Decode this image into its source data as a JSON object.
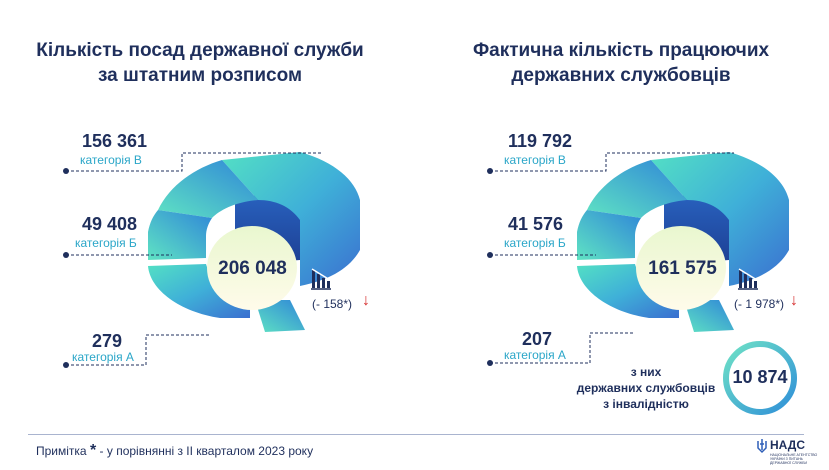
{
  "colors": {
    "navy": "#1f2f5c",
    "teal": "#2aa6c8",
    "down_arrow": "#d62f2f",
    "ring": "#3fb6d6"
  },
  "left": {
    "title_line1": "Кількість посад державної служби",
    "title_line2": "за штатним розписом",
    "total": "206 048",
    "change": "(- 158*)",
    "categories": [
      {
        "value": "156 361",
        "label": "категорія В"
      },
      {
        "value": "49 408",
        "label": "категорія Б"
      },
      {
        "value": "279",
        "label": "категорія А"
      }
    ]
  },
  "right": {
    "title_line1": "Фактична кількість працюючих",
    "title_line2": "державних службовців",
    "total": "161 575",
    "change": "(- 1 978*)",
    "categories": [
      {
        "value": "119 792",
        "label": "категорія В"
      },
      {
        "value": "41 576",
        "label": "категорія Б"
      },
      {
        "value": "207",
        "label": "категорія А"
      }
    ],
    "disabled_text_line1": "з них",
    "disabled_text_line2": "державних службовців",
    "disabled_text_line3": "з інвалідністю",
    "disabled_value": "10 874"
  },
  "footer": {
    "note_prefix": "Примітка",
    "note_star": "*",
    "note_text": " - у порівнянні з II кварталом 2023 року",
    "logo_name": "НАДС",
    "logo_subtitle": "НАЦІОНАЛЬНЕ АГЕНТСТВО УКРАЇНИ З ПИТАНЬ ДЕРЖАВНОЇ СЛУЖБИ"
  },
  "icons": {
    "category_marker": "dot-icon",
    "trend": "bar-chart-down-icon",
    "change_arrow": "arrow-down-icon",
    "logo": "trident-icon"
  },
  "chart_data": [
    {
      "type": "pie",
      "title": "Кількість посад державної служби за штатним розписом",
      "total": 206048,
      "total_change": -158,
      "categories": [
        "категорія В",
        "категорія Б",
        "категорія А"
      ],
      "values": [
        156361,
        49408,
        279
      ]
    },
    {
      "type": "pie",
      "title": "Фактична кількість працюючих державних службовців",
      "total": 161575,
      "total_change": -1978,
      "categories": [
        "категорія В",
        "категорія Б",
        "категорія А"
      ],
      "values": [
        119792,
        41576,
        207
      ],
      "disabled_employees": 10874
    }
  ]
}
